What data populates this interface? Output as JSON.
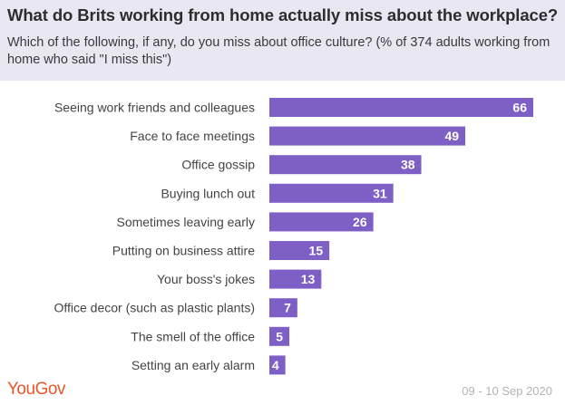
{
  "header": {
    "title": "What do Brits working from home actually miss about the workplace?",
    "subtitle": "Which of the following, if any, do you miss about office culture? (% of 374 adults working from home who said \"I miss this\")"
  },
  "footer": {
    "logo": "YouGov",
    "date": "09 - 10 Sep 2020"
  },
  "colors": {
    "bar": "#7e5fc6",
    "header_bg": "#e9e7f2",
    "logo": "#e8562a"
  },
  "chart_data": {
    "type": "bar",
    "orientation": "horizontal",
    "categories": [
      "Seeing work friends and colleagues",
      "Face to face meetings",
      "Office gossip",
      "Buying lunch out",
      "Sometimes leaving early",
      "Putting on business attire",
      "Your boss's jokes",
      "Office decor (such as plastic plants)",
      "The smell of the office",
      "Setting an early alarm"
    ],
    "values": [
      66,
      49,
      38,
      31,
      26,
      15,
      13,
      7,
      5,
      4
    ],
    "xlim": [
      0,
      66
    ],
    "grid": false,
    "legend": false
  }
}
